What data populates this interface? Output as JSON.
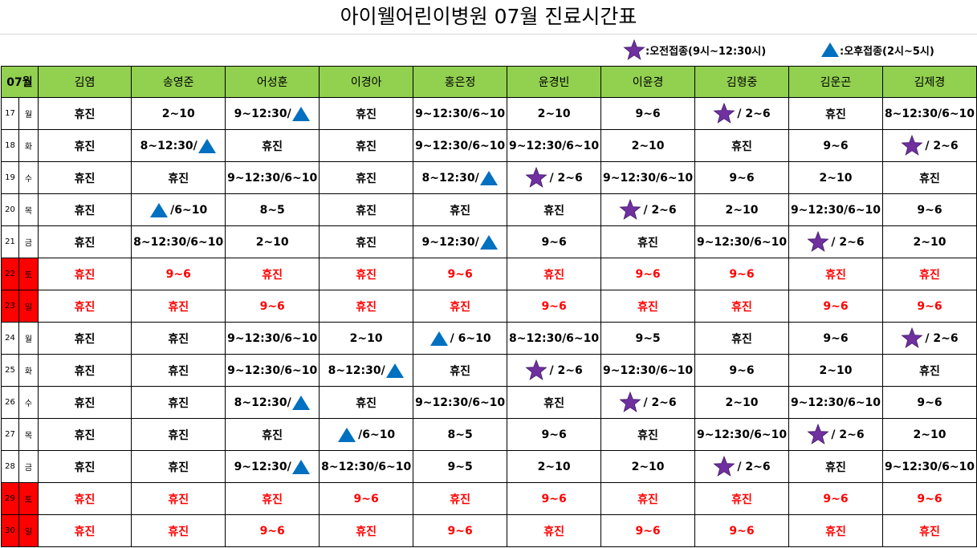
{
  "title": "아이웰어린이병원  07월  진료시간표",
  "legend": [
    {
      "icon": "star-icon",
      "label": ":오전접종(9시~12:30시)"
    },
    {
      "icon": "triangle-icon",
      "label": ":오후접종(2시~5시)"
    }
  ],
  "colors": {
    "header_green": "#92d050",
    "weekend_red": "#ff0000",
    "star": "#7030a0",
    "triangle": "#0070c0"
  },
  "month_label": "07월",
  "doctors": [
    "김염",
    "송영준",
    "어성훈",
    "이경아",
    "홍은정",
    "윤경빈",
    "이윤경",
    "김형중",
    "김운곤",
    "김제경"
  ],
  "rows": [
    {
      "day": "17",
      "weekday": "월",
      "weekend": false,
      "cells": [
        {
          "t": "휴진"
        },
        {
          "t": "2~10"
        },
        {
          "t": "9~12:30/",
          "i": "triangle",
          "p": "after"
        },
        {
          "t": "휴진"
        },
        {
          "t": "9~12:30/6~10"
        },
        {
          "t": "2~10"
        },
        {
          "t": "9~6"
        },
        {
          "t": "/ 2~6",
          "i": "star",
          "p": "before"
        },
        {
          "t": "휴진"
        },
        {
          "t": "8~12:30/6~10"
        }
      ]
    },
    {
      "day": "18",
      "weekday": "화",
      "weekend": false,
      "cells": [
        {
          "t": "휴진"
        },
        {
          "t": "8~12:30/",
          "i": "triangle",
          "p": "after"
        },
        {
          "t": "휴진"
        },
        {
          "t": "휴진"
        },
        {
          "t": "9~12:30/6~10"
        },
        {
          "t": "9~12:30/6~10"
        },
        {
          "t": "2~10"
        },
        {
          "t": "휴진"
        },
        {
          "t": "9~6"
        },
        {
          "t": "/ 2~6",
          "i": "star",
          "p": "before"
        }
      ]
    },
    {
      "day": "19",
      "weekday": "수",
      "weekend": false,
      "cells": [
        {
          "t": "휴진"
        },
        {
          "t": "휴진"
        },
        {
          "t": "9~12:30/6~10"
        },
        {
          "t": "휴진"
        },
        {
          "t": "8~12:30/",
          "i": "triangle",
          "p": "after"
        },
        {
          "t": "/ 2~6",
          "i": "star",
          "p": "before"
        },
        {
          "t": "9~12:30/6~10"
        },
        {
          "t": "9~6"
        },
        {
          "t": "2~10"
        },
        {
          "t": "휴진"
        }
      ]
    },
    {
      "day": "20",
      "weekday": "목",
      "weekend": false,
      "cells": [
        {
          "t": "휴진"
        },
        {
          "t": "/6~10",
          "i": "triangle",
          "p": "before"
        },
        {
          "t": "8~5"
        },
        {
          "t": "휴진"
        },
        {
          "t": "휴진"
        },
        {
          "t": "휴진"
        },
        {
          "t": "/ 2~6",
          "i": "star",
          "p": "before"
        },
        {
          "t": "2~10"
        },
        {
          "t": "9~12:30/6~10"
        },
        {
          "t": "9~6"
        }
      ]
    },
    {
      "day": "21",
      "weekday": "금",
      "weekend": false,
      "cells": [
        {
          "t": "휴진"
        },
        {
          "t": "8~12:30/6~10"
        },
        {
          "t": "2~10"
        },
        {
          "t": "휴진"
        },
        {
          "t": "9~12:30/",
          "i": "triangle",
          "p": "after"
        },
        {
          "t": "9~6"
        },
        {
          "t": "휴진"
        },
        {
          "t": "9~12:30/6~10"
        },
        {
          "t": "/ 2~6",
          "i": "star",
          "p": "before"
        },
        {
          "t": "2~10"
        }
      ]
    },
    {
      "day": "22",
      "weekday": "토",
      "weekend": true,
      "cells": [
        {
          "t": "휴진"
        },
        {
          "t": "9~6"
        },
        {
          "t": "휴진"
        },
        {
          "t": "휴진"
        },
        {
          "t": "9~6"
        },
        {
          "t": "휴진"
        },
        {
          "t": "9~6"
        },
        {
          "t": "9~6"
        },
        {
          "t": "휴진"
        },
        {
          "t": "휴진"
        }
      ]
    },
    {
      "day": "23",
      "weekday": "일",
      "weekend": true,
      "cells": [
        {
          "t": "휴진"
        },
        {
          "t": "휴진"
        },
        {
          "t": "9~6"
        },
        {
          "t": "휴진"
        },
        {
          "t": "휴진"
        },
        {
          "t": "9~6"
        },
        {
          "t": "휴진"
        },
        {
          "t": "휴진"
        },
        {
          "t": "9~6"
        },
        {
          "t": "9~6"
        }
      ]
    },
    {
      "day": "24",
      "weekday": "월",
      "weekend": false,
      "cells": [
        {
          "t": "휴진"
        },
        {
          "t": "휴진"
        },
        {
          "t": "9~12:30/6~10"
        },
        {
          "t": "2~10"
        },
        {
          "t": "/ 6~10",
          "i": "triangle",
          "p": "before"
        },
        {
          "t": "8~12:30/6~10"
        },
        {
          "t": "9~5"
        },
        {
          "t": "휴진"
        },
        {
          "t": "9~6"
        },
        {
          "t": "/ 2~6",
          "i": "star",
          "p": "before"
        }
      ]
    },
    {
      "day": "25",
      "weekday": "화",
      "weekend": false,
      "cells": [
        {
          "t": "휴진"
        },
        {
          "t": "휴진"
        },
        {
          "t": "9~12:30/6~10"
        },
        {
          "t": "8~12:30/",
          "i": "triangle",
          "p": "after"
        },
        {
          "t": "휴진"
        },
        {
          "t": "/ 2~6",
          "i": "star",
          "p": "before"
        },
        {
          "t": "9~12:30/6~10"
        },
        {
          "t": "9~6"
        },
        {
          "t": "2~10"
        },
        {
          "t": "휴진"
        }
      ]
    },
    {
      "day": "26",
      "weekday": "수",
      "weekend": false,
      "cells": [
        {
          "t": "휴진"
        },
        {
          "t": "휴진"
        },
        {
          "t": "8~12:30/",
          "i": "triangle",
          "p": "after"
        },
        {
          "t": "휴진"
        },
        {
          "t": "9~12:30/6~10"
        },
        {
          "t": "휴진"
        },
        {
          "t": "/ 2~6",
          "i": "star",
          "p": "before"
        },
        {
          "t": "2~10"
        },
        {
          "t": "9~12:30/6~10"
        },
        {
          "t": "9~6"
        }
      ]
    },
    {
      "day": "27",
      "weekday": "목",
      "weekend": false,
      "cells": [
        {
          "t": "휴진"
        },
        {
          "t": "휴진"
        },
        {
          "t": "휴진"
        },
        {
          "t": "/6~10",
          "i": "triangle",
          "p": "before"
        },
        {
          "t": "8~5"
        },
        {
          "t": "9~6"
        },
        {
          "t": "휴진"
        },
        {
          "t": "9~12:30/6~10"
        },
        {
          "t": "/ 2~6",
          "i": "star",
          "p": "before"
        },
        {
          "t": "2~10"
        }
      ]
    },
    {
      "day": "28",
      "weekday": "금",
      "weekend": false,
      "cells": [
        {
          "t": "휴진"
        },
        {
          "t": "휴진"
        },
        {
          "t": "9~12:30/",
          "i": "triangle",
          "p": "after"
        },
        {
          "t": "8~12:30/6~10"
        },
        {
          "t": "9~5"
        },
        {
          "t": "2~10"
        },
        {
          "t": "2~10"
        },
        {
          "t": "/ 2~6",
          "i": "star",
          "p": "before"
        },
        {
          "t": "휴진"
        },
        {
          "t": "9~12:30/6~10"
        }
      ]
    },
    {
      "day": "29",
      "weekday": "토",
      "weekend": true,
      "cells": [
        {
          "t": "휴진"
        },
        {
          "t": "휴진"
        },
        {
          "t": "휴진"
        },
        {
          "t": "9~6"
        },
        {
          "t": "휴진"
        },
        {
          "t": "9~6"
        },
        {
          "t": "휴진"
        },
        {
          "t": "휴진"
        },
        {
          "t": "9~6"
        },
        {
          "t": "9~6"
        }
      ]
    },
    {
      "day": "30",
      "weekday": "일",
      "weekend": true,
      "cells": [
        {
          "t": "휴진"
        },
        {
          "t": "휴진"
        },
        {
          "t": "9~6"
        },
        {
          "t": "휴진"
        },
        {
          "t": "9~6"
        },
        {
          "t": "휴진"
        },
        {
          "t": "9~6"
        },
        {
          "t": "9~6"
        },
        {
          "t": "휴진"
        },
        {
          "t": "휴진"
        }
      ]
    }
  ]
}
